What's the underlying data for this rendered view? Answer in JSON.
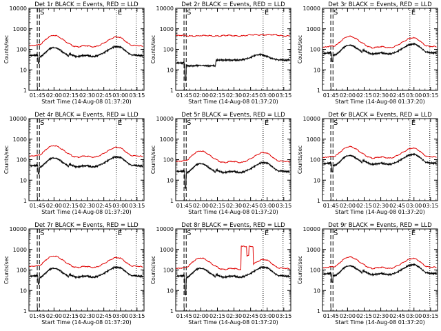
{
  "chart_data": {
    "type": "line",
    "title_template": "Det {det} BLACK = Events, RED = LLD",
    "xlabel": "Start Time (14-Aug-08 01:37:20)",
    "ylabel": "Counts/sec",
    "x_unit": "minutes after 01:37:20",
    "xlim": [
      0,
      104
    ],
    "ylim": [
      1,
      10000
    ],
    "yscale": "log",
    "x_tick_labels": [
      "01:45",
      "02:00",
      "02:15",
      "02:30",
      "02:45",
      "03:00",
      "03:15"
    ],
    "x_tick_values": [
      7.67,
      22.67,
      37.67,
      52.67,
      67.67,
      82.67,
      97.67
    ],
    "y_tick_labels": [
      "1",
      "10",
      "100",
      "1000",
      "10000"
    ],
    "y_tick_values": [
      1,
      10,
      100,
      1000,
      10000
    ],
    "markers": {
      "S_dashed": {
        "label": "S",
        "x": [
          7.5,
          9.5
        ]
      },
      "E_dotted": {
        "label": "E",
        "x": [
          79.0,
          97.0
        ]
      }
    },
    "series_names": [
      "Events",
      "LLD"
    ],
    "series_colors": {
      "Events": "#000000",
      "LLD": "#e00000"
    },
    "panels": [
      {
        "det": "1r",
        "evt_scale": 0.34,
        "lld_scale": 1.0,
        "evt_dip": 20,
        "shift": 0
      },
      {
        "det": "2r",
        "evt_scale": 0.06,
        "lld_scale": 1.0,
        "evt_dip": 3,
        "shift": 0,
        "special": "flat_high"
      },
      {
        "det": "3r",
        "evt_scale": 0.45,
        "lld_scale": 0.9,
        "evt_dip": 25,
        "shift": -2
      },
      {
        "det": "4r",
        "evt_scale": 0.34,
        "lld_scale": 1.0,
        "evt_dip": 20,
        "shift": 0
      },
      {
        "det": "5r",
        "evt_scale": 0.18,
        "lld_scale": 0.55,
        "evt_dip": 4,
        "shift": 0
      },
      {
        "det": "6r",
        "evt_scale": 0.45,
        "lld_scale": 0.9,
        "evt_dip": 25,
        "shift": -2
      },
      {
        "det": "7r",
        "evt_scale": 0.34,
        "lld_scale": 1.0,
        "evt_dip": 20,
        "shift": 0
      },
      {
        "det": "8r",
        "evt_scale": 0.34,
        "lld_scale": 0.8,
        "evt_dip": 6,
        "shift": 0,
        "special": "lld_spike"
      },
      {
        "det": "9r",
        "evt_scale": 0.45,
        "lld_scale": 0.9,
        "evt_dip": 25,
        "shift": -2
      }
    ]
  }
}
